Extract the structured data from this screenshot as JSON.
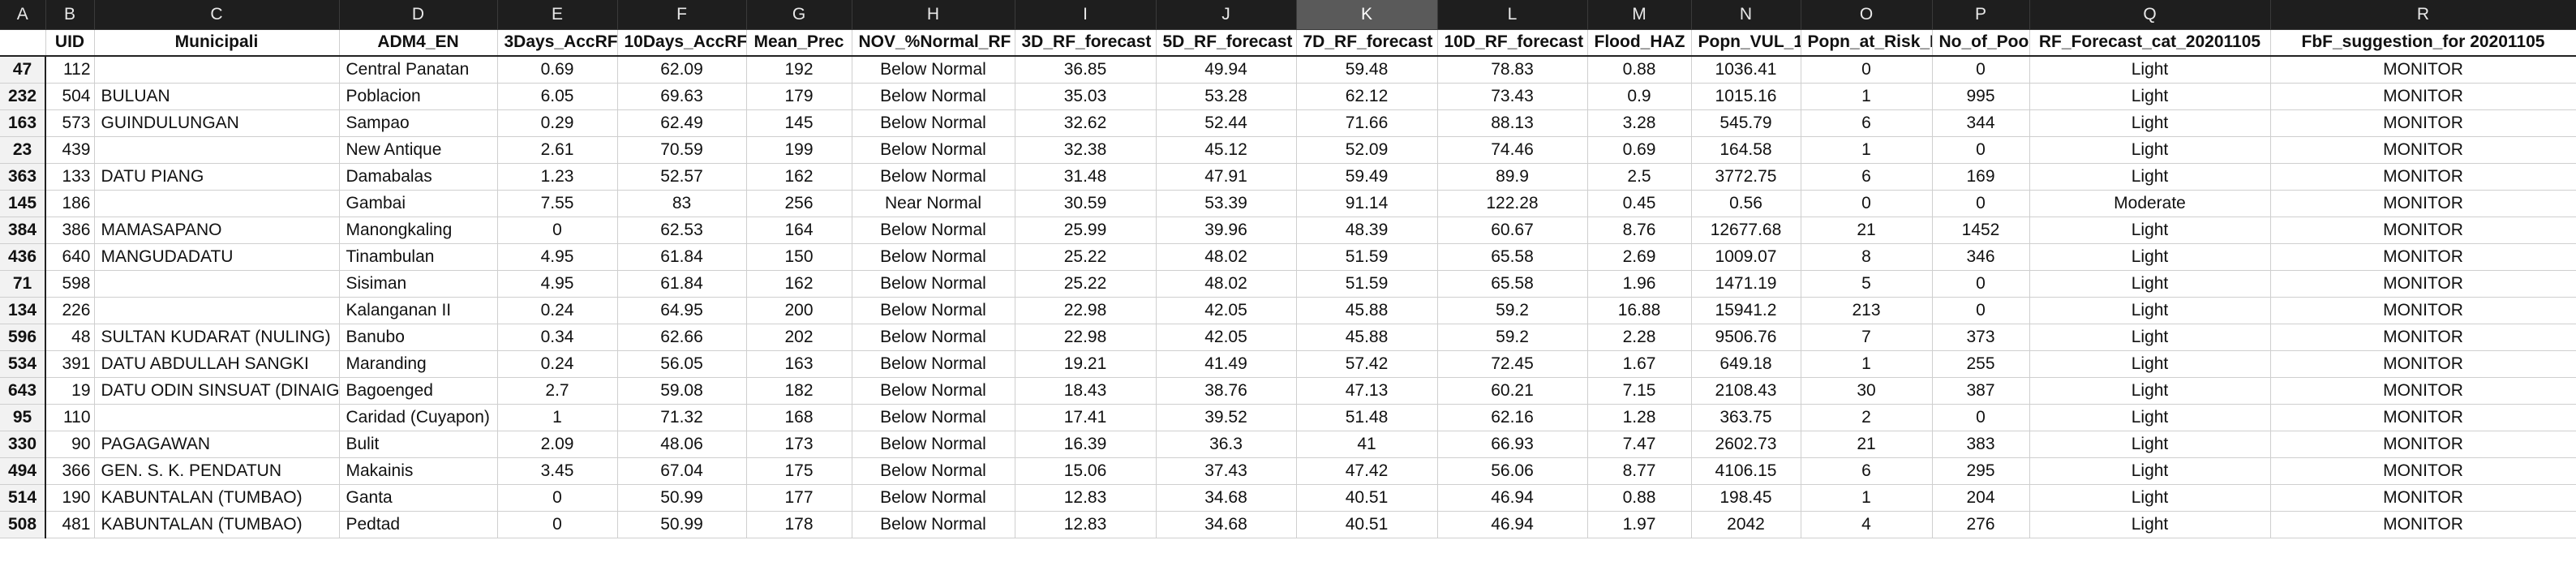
{
  "column_letters": [
    "A",
    "B",
    "C",
    "D",
    "E",
    "F",
    "G",
    "H",
    "I",
    "J",
    "K",
    "L",
    "M",
    "N",
    "O",
    "P",
    "Q",
    "R"
  ],
  "selected_column": "K",
  "headers": [
    "",
    "UID",
    "Municipali",
    "ADM4_EN",
    "3Days_AccRF",
    "10Days_AccRF",
    "Mean_Prec",
    "NOV_%Normal_RF",
    "3D_RF_forecast",
    "5D_RF_forecast",
    "7D_RF_forecast",
    "10D_RF_forecast",
    "Flood_HAZ",
    "Popn_VUL_1",
    "Popn_at_Risk_FL",
    "No_of_Poor",
    "RF_Forecast_cat_20201105",
    "FbF_suggestion_for 20201105"
  ],
  "rows": [
    [
      "47",
      "112",
      "",
      "Central Panatan",
      "0.69",
      "62.09",
      "192",
      "Below Normal",
      "36.85",
      "49.94",
      "59.48",
      "78.83",
      "0.88",
      "1036.41",
      "0",
      "0",
      "Light",
      "MONITOR"
    ],
    [
      "232",
      "504",
      "BULUAN",
      "Poblacion",
      "6.05",
      "69.63",
      "179",
      "Below Normal",
      "35.03",
      "53.28",
      "62.12",
      "73.43",
      "0.9",
      "1015.16",
      "1",
      "995",
      "Light",
      "MONITOR"
    ],
    [
      "163",
      "573",
      "GUINDULUNGAN",
      "Sampao",
      "0.29",
      "62.49",
      "145",
      "Below Normal",
      "32.62",
      "52.44",
      "71.66",
      "88.13",
      "3.28",
      "545.79",
      "6",
      "344",
      "Light",
      "MONITOR"
    ],
    [
      "23",
      "439",
      "",
      "New Antique",
      "2.61",
      "70.59",
      "199",
      "Below Normal",
      "32.38",
      "45.12",
      "52.09",
      "74.46",
      "0.69",
      "164.58",
      "1",
      "0",
      "Light",
      "MONITOR"
    ],
    [
      "363",
      "133",
      "DATU PIANG",
      "Damabalas",
      "1.23",
      "52.57",
      "162",
      "Below Normal",
      "31.48",
      "47.91",
      "59.49",
      "89.9",
      "2.5",
      "3772.75",
      "6",
      "169",
      "Light",
      "MONITOR"
    ],
    [
      "145",
      "186",
      "",
      "Gambai",
      "7.55",
      "83",
      "256",
      "Near Normal",
      "30.59",
      "53.39",
      "91.14",
      "122.28",
      "0.45",
      "0.56",
      "0",
      "0",
      "Moderate",
      "MONITOR"
    ],
    [
      "384",
      "386",
      "MAMASAPANO",
      "Manongkaling",
      "0",
      "62.53",
      "164",
      "Below Normal",
      "25.99",
      "39.96",
      "48.39",
      "60.67",
      "8.76",
      "12677.68",
      "21",
      "1452",
      "Light",
      "MONITOR"
    ],
    [
      "436",
      "640",
      "MANGUDADATU",
      "Tinambulan",
      "4.95",
      "61.84",
      "150",
      "Below Normal",
      "25.22",
      "48.02",
      "51.59",
      "65.58",
      "2.69",
      "1009.07",
      "8",
      "346",
      "Light",
      "MONITOR"
    ],
    [
      "71",
      "598",
      "",
      "Sisiman",
      "4.95",
      "61.84",
      "162",
      "Below Normal",
      "25.22",
      "48.02",
      "51.59",
      "65.58",
      "1.96",
      "1471.19",
      "5",
      "0",
      "Light",
      "MONITOR"
    ],
    [
      "134",
      "226",
      "",
      "Kalanganan II",
      "0.24",
      "64.95",
      "200",
      "Below Normal",
      "22.98",
      "42.05",
      "45.88",
      "59.2",
      "16.88",
      "15941.2",
      "213",
      "0",
      "Light",
      "MONITOR"
    ],
    [
      "596",
      "48",
      "SULTAN KUDARAT (NULING)",
      "Banubo",
      "0.34",
      "62.66",
      "202",
      "Below Normal",
      "22.98",
      "42.05",
      "45.88",
      "59.2",
      "2.28",
      "9506.76",
      "7",
      "373",
      "Light",
      "MONITOR"
    ],
    [
      "534",
      "391",
      "DATU ABDULLAH SANGKI",
      "Maranding",
      "0.24",
      "56.05",
      "163",
      "Below Normal",
      "19.21",
      "41.49",
      "57.42",
      "72.45",
      "1.67",
      "649.18",
      "1",
      "255",
      "Light",
      "MONITOR"
    ],
    [
      "643",
      "19",
      "DATU ODIN SINSUAT (DINAIG)",
      "Bagoenged",
      "2.7",
      "59.08",
      "182",
      "Below Normal",
      "18.43",
      "38.76",
      "47.13",
      "60.21",
      "7.15",
      "2108.43",
      "30",
      "387",
      "Light",
      "MONITOR"
    ],
    [
      "95",
      "110",
      "",
      "Caridad (Cuyapon)",
      "1",
      "71.32",
      "168",
      "Below Normal",
      "17.41",
      "39.52",
      "51.48",
      "62.16",
      "1.28",
      "363.75",
      "2",
      "0",
      "Light",
      "MONITOR"
    ],
    [
      "330",
      "90",
      "PAGAGAWAN",
      "Bulit",
      "2.09",
      "48.06",
      "173",
      "Below Normal",
      "16.39",
      "36.3",
      "41",
      "66.93",
      "7.47",
      "2602.73",
      "21",
      "383",
      "Light",
      "MONITOR"
    ],
    [
      "494",
      "366",
      "GEN. S. K. PENDATUN",
      "Makainis",
      "3.45",
      "67.04",
      "175",
      "Below Normal",
      "15.06",
      "37.43",
      "47.42",
      "56.06",
      "8.77",
      "4106.15",
      "6",
      "295",
      "Light",
      "MONITOR"
    ],
    [
      "514",
      "190",
      "KABUNTALAN (TUMBAO)",
      "Ganta",
      "0",
      "50.99",
      "177",
      "Below Normal",
      "12.83",
      "34.68",
      "40.51",
      "46.94",
      "0.88",
      "198.45",
      "1",
      "204",
      "Light",
      "MONITOR"
    ],
    [
      "508",
      "481",
      "KABUNTALAN (TUMBAO)",
      "Pedtad",
      "0",
      "50.99",
      "178",
      "Below Normal",
      "12.83",
      "34.68",
      "40.51",
      "46.94",
      "1.97",
      "2042",
      "4",
      "276",
      "Light",
      "MONITOR"
    ]
  ]
}
